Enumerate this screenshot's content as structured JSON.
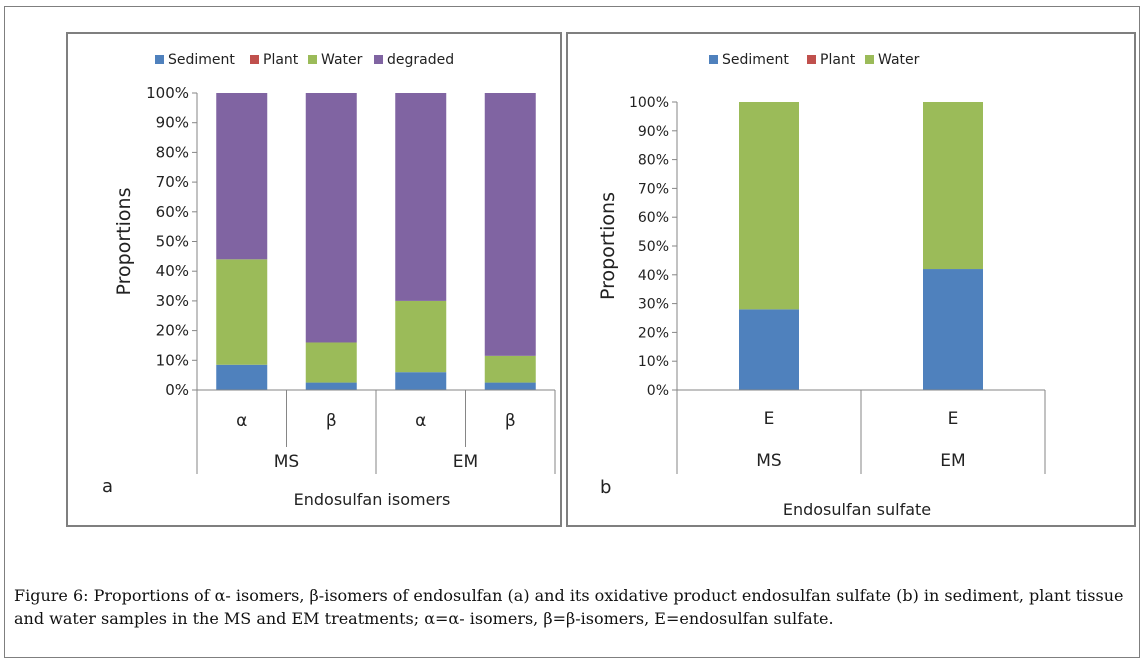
{
  "chart_data": [
    {
      "type": "bar",
      "stacked": true,
      "panel_label": "a",
      "ylabel": "Proportions",
      "xlabel": "Endosulfan isomers",
      "ylim": [
        0,
        100
      ],
      "yticks": [
        "0%",
        "10%",
        "20%",
        "30%",
        "40%",
        "50%",
        "60%",
        "70%",
        "80%",
        "90%",
        "100%"
      ],
      "categories": [
        "α",
        "β",
        "α",
        "β"
      ],
      "groups": [
        {
          "name": "MS",
          "span": [
            0,
            1
          ]
        },
        {
          "name": "EM",
          "span": [
            2,
            3
          ]
        }
      ],
      "legend_position": "top",
      "series": [
        {
          "name": "Sediment",
          "color": "#4f81bd",
          "values": [
            8.5,
            2.5,
            6,
            2.5
          ]
        },
        {
          "name": "Plant",
          "color": "#c0504d",
          "values": [
            0,
            0,
            0,
            0
          ]
        },
        {
          "name": "Water",
          "color": "#9bbb59",
          "values": [
            35.5,
            13.5,
            24,
            9
          ]
        },
        {
          "name": "degraded",
          "color": "#8064a2",
          "values": [
            56,
            84,
            70,
            88.5
          ]
        }
      ]
    },
    {
      "type": "bar",
      "stacked": true,
      "panel_label": "b",
      "ylabel": "Proportions",
      "xlabel": "Endosulfan sulfate",
      "ylim": [
        0,
        100
      ],
      "yticks": [
        "0%",
        "10%",
        "20%",
        "30%",
        "40%",
        "50%",
        "60%",
        "70%",
        "80%",
        "90%",
        "100%"
      ],
      "categories": [
        "E",
        "E"
      ],
      "groups": [
        {
          "name": "MS",
          "span": [
            0,
            0
          ]
        },
        {
          "name": "EM",
          "span": [
            1,
            1
          ]
        }
      ],
      "legend_position": "top",
      "series": [
        {
          "name": "Sediment",
          "color": "#4f81bd",
          "values": [
            28,
            42
          ]
        },
        {
          "name": "Plant",
          "color": "#c0504d",
          "values": [
            0,
            0
          ]
        },
        {
          "name": "Water",
          "color": "#9bbb59",
          "values": [
            72,
            58
          ]
        }
      ]
    }
  ],
  "caption": {
    "label": "Figure 6:",
    "text": " Proportions of α- isomers, β-isomers of endosulfan (a) and its oxidative product endosulfan sulfate (b) in sediment, plant tissue and water samples in the MS and EM treatments; α=α- isomers, β=β-isomers, E=endosulfan sulfate."
  }
}
